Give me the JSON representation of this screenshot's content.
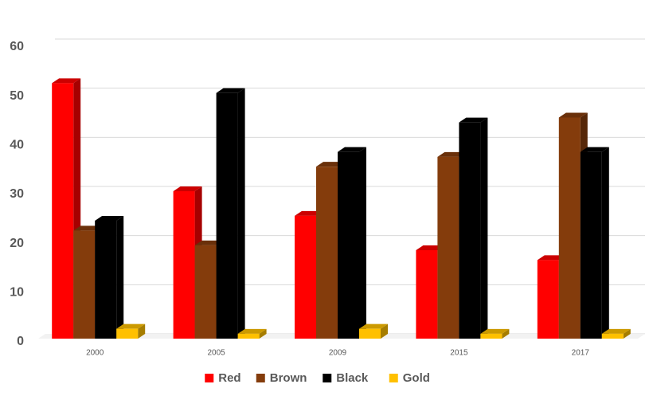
{
  "chart_data": {
    "type": "bar3d",
    "categories": [
      "2000",
      "2005",
      "2009",
      "2015",
      "2017"
    ],
    "series": [
      {
        "name": "Red",
        "color": "#ff0000",
        "values": [
          52,
          30,
          25,
          18,
          16
        ]
      },
      {
        "name": "Brown",
        "color": "#843c0c",
        "values": [
          22,
          19,
          35,
          37,
          45
        ]
      },
      {
        "name": "Black",
        "color": "#000000",
        "values": [
          24,
          50,
          38,
          44,
          38
        ]
      },
      {
        "name": "Gold",
        "color": "#ffc000",
        "values": [
          2,
          1,
          2,
          1,
          1
        ]
      }
    ],
    "ylim": [
      0,
      60
    ],
    "yticks": [
      0,
      10,
      20,
      30,
      40,
      50,
      60
    ],
    "grid": true,
    "legend": "bottom"
  }
}
